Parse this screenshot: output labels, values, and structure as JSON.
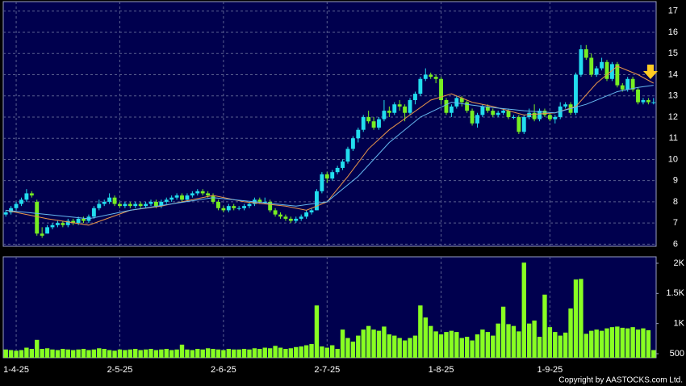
{
  "chart_data": [
    {
      "type": "candlestick",
      "up_color": "#22ddee",
      "down_color": "#77ee22",
      "xlim": [
        -0.5,
        125.5
      ],
      "xticks": [
        {
          "value": 2,
          "label": "1-4-25"
        },
        {
          "value": 22,
          "label": "2-5-25"
        },
        {
          "value": 42,
          "label": "2-6-25"
        },
        {
          "value": 62,
          "label": "2-7-25"
        },
        {
          "value": 84,
          "label": "1-8-25"
        },
        {
          "value": 105,
          "label": "1-9-25"
        }
      ],
      "ylim": [
        5.9,
        17.45
      ],
      "yticks": [
        6,
        7,
        8,
        9,
        10,
        11,
        12,
        13,
        14,
        15,
        16,
        17
      ],
      "grid": true,
      "ohlc": [
        [
          7.4,
          7.6,
          7.3,
          7.5
        ],
        [
          7.5,
          7.8,
          7.4,
          7.7
        ],
        [
          7.7,
          8.0,
          7.6,
          7.9
        ],
        [
          7.9,
          8.2,
          7.8,
          8.1
        ],
        [
          8.1,
          8.6,
          8.0,
          8.4
        ],
        [
          8.4,
          8.5,
          8.2,
          8.3
        ],
        [
          8.0,
          8.1,
          6.4,
          6.5
        ],
        [
          6.5,
          6.8,
          6.3,
          6.4
        ],
        [
          6.5,
          6.9,
          6.5,
          6.8
        ],
        [
          6.8,
          7.0,
          6.7,
          6.9
        ],
        [
          6.9,
          7.1,
          6.8,
          7.0
        ],
        [
          7.0,
          7.1,
          6.8,
          6.9
        ],
        [
          6.9,
          7.2,
          6.8,
          7.1
        ],
        [
          7.1,
          7.2,
          6.9,
          7.0
        ],
        [
          7.0,
          7.3,
          6.9,
          7.2
        ],
        [
          7.2,
          7.3,
          7.0,
          7.1
        ],
        [
          7.1,
          7.4,
          7.0,
          7.3
        ],
        [
          7.3,
          7.8,
          7.2,
          7.7
        ],
        [
          7.7,
          8.1,
          7.6,
          7.9
        ],
        [
          7.9,
          8.1,
          7.8,
          8.0
        ],
        [
          8.0,
          8.4,
          7.9,
          8.2
        ],
        [
          8.2,
          8.3,
          7.8,
          7.9
        ],
        [
          7.9,
          8.0,
          7.7,
          7.8
        ],
        [
          7.8,
          8.0,
          7.7,
          7.9
        ],
        [
          7.9,
          8.0,
          7.7,
          7.8
        ],
        [
          7.8,
          8.0,
          7.7,
          7.9
        ],
        [
          7.9,
          8.0,
          7.7,
          7.8
        ],
        [
          7.8,
          8.0,
          7.7,
          7.9
        ],
        [
          7.9,
          8.1,
          7.8,
          8.0
        ],
        [
          8.0,
          8.1,
          7.7,
          7.8
        ],
        [
          7.8,
          8.1,
          7.7,
          8.0
        ],
        [
          8.0,
          8.2,
          7.9,
          8.1
        ],
        [
          8.1,
          8.3,
          8.0,
          8.2
        ],
        [
          8.2,
          8.4,
          8.1,
          8.3
        ],
        [
          8.3,
          8.4,
          8.0,
          8.1
        ],
        [
          8.1,
          8.4,
          8.0,
          8.3
        ],
        [
          8.3,
          8.5,
          8.2,
          8.4
        ],
        [
          8.4,
          8.6,
          8.3,
          8.5
        ],
        [
          8.5,
          8.6,
          8.3,
          8.4
        ],
        [
          8.4,
          8.5,
          8.2,
          8.3
        ],
        [
          8.3,
          8.4,
          7.9,
          8.0
        ],
        [
          8.0,
          8.1,
          7.6,
          7.7
        ],
        [
          7.7,
          7.8,
          7.5,
          7.6
        ],
        [
          7.6,
          7.9,
          7.5,
          7.8
        ],
        [
          7.8,
          7.9,
          7.6,
          7.7
        ],
        [
          7.7,
          7.8,
          7.6,
          7.7
        ],
        [
          7.7,
          7.9,
          7.6,
          7.8
        ],
        [
          7.8,
          8.0,
          7.7,
          7.9
        ],
        [
          7.9,
          8.2,
          7.8,
          8.1
        ],
        [
          8.1,
          8.2,
          7.9,
          8.0
        ],
        [
          8.0,
          8.2,
          7.9,
          8.0
        ],
        [
          8.0,
          8.1,
          7.5,
          7.6
        ],
        [
          7.6,
          7.7,
          7.3,
          7.4
        ],
        [
          7.4,
          7.5,
          7.2,
          7.3
        ],
        [
          7.3,
          7.4,
          7.1,
          7.2
        ],
        [
          7.2,
          7.3,
          7.0,
          7.1
        ],
        [
          7.1,
          7.3,
          7.0,
          7.2
        ],
        [
          7.2,
          7.4,
          7.1,
          7.3
        ],
        [
          7.3,
          7.6,
          7.2,
          7.5
        ],
        [
          7.5,
          7.7,
          7.4,
          7.6
        ],
        [
          7.6,
          8.6,
          7.6,
          8.5
        ],
        [
          8.5,
          9.4,
          8.4,
          9.3
        ],
        [
          9.3,
          9.4,
          8.9,
          9.1
        ],
        [
          9.1,
          9.5,
          9.0,
          9.4
        ],
        [
          9.4,
          9.7,
          9.3,
          9.6
        ],
        [
          9.6,
          10.0,
          9.5,
          9.9
        ],
        [
          9.9,
          10.6,
          9.8,
          10.5
        ],
        [
          10.5,
          11.1,
          10.4,
          11.0
        ],
        [
          11.0,
          11.5,
          10.8,
          11.4
        ],
        [
          11.4,
          12.1,
          11.3,
          12.0
        ],
        [
          12.0,
          12.3,
          11.7,
          11.8
        ],
        [
          11.8,
          12.0,
          11.4,
          11.5
        ],
        [
          11.5,
          12.0,
          11.4,
          11.9
        ],
        [
          11.9,
          12.8,
          11.8,
          12.3
        ],
        [
          12.3,
          12.5,
          12.0,
          12.2
        ],
        [
          12.2,
          12.7,
          12.1,
          12.6
        ],
        [
          12.6,
          12.8,
          12.3,
          12.5
        ],
        [
          12.5,
          12.6,
          11.8,
          12.2
        ],
        [
          12.2,
          12.9,
          12.1,
          12.8
        ],
        [
          12.8,
          13.2,
          12.6,
          13.1
        ],
        [
          13.1,
          13.9,
          13.0,
          13.8
        ],
        [
          13.8,
          14.3,
          13.7,
          14.0
        ],
        [
          14.0,
          14.1,
          13.8,
          13.9
        ],
        [
          13.9,
          14.0,
          13.6,
          13.8
        ],
        [
          13.8,
          13.9,
          12.6,
          12.8
        ],
        [
          12.8,
          12.9,
          12.1,
          12.2
        ],
        [
          12.2,
          12.6,
          12.0,
          12.5
        ],
        [
          12.5,
          13.0,
          12.4,
          12.9
        ],
        [
          12.9,
          13.0,
          12.5,
          12.7
        ],
        [
          12.7,
          12.8,
          12.2,
          12.3
        ],
        [
          12.3,
          12.4,
          11.6,
          11.7
        ],
        [
          11.7,
          12.2,
          11.5,
          12.1
        ],
        [
          12.1,
          12.6,
          12.0,
          12.5
        ],
        [
          12.5,
          12.6,
          12.2,
          12.3
        ],
        [
          12.3,
          12.4,
          12.0,
          12.1
        ],
        [
          12.1,
          12.3,
          12.0,
          12.2
        ],
        [
          12.2,
          12.4,
          12.1,
          12.3
        ],
        [
          12.3,
          12.4,
          11.9,
          12.0
        ],
        [
          12.0,
          12.1,
          11.9,
          12.0
        ],
        [
          12.0,
          12.1,
          11.2,
          11.3
        ],
        [
          11.3,
          12.1,
          11.2,
          12.0
        ],
        [
          12.0,
          12.4,
          11.9,
          12.2
        ],
        [
          12.2,
          12.6,
          11.8,
          11.9
        ],
        [
          11.9,
          12.4,
          11.8,
          12.3
        ],
        [
          12.3,
          12.4,
          12.0,
          12.1
        ],
        [
          12.1,
          12.2,
          11.8,
          11.9
        ],
        [
          11.9,
          12.1,
          11.7,
          12.0
        ],
        [
          12.0,
          12.7,
          11.9,
          12.5
        ],
        [
          12.5,
          12.7,
          12.4,
          12.6
        ],
        [
          12.6,
          12.7,
          12.1,
          12.2
        ],
        [
          12.2,
          14.1,
          12.1,
          14.0
        ],
        [
          14.0,
          15.4,
          13.9,
          15.2
        ],
        [
          15.2,
          15.4,
          14.7,
          14.8
        ],
        [
          14.8,
          15.0,
          13.9,
          14.0
        ],
        [
          14.0,
          14.4,
          13.9,
          14.3
        ],
        [
          14.3,
          14.8,
          14.2,
          14.6
        ],
        [
          14.6,
          14.7,
          13.7,
          13.8
        ],
        [
          13.8,
          14.6,
          13.7,
          14.5
        ],
        [
          14.5,
          14.6,
          13.4,
          13.5
        ],
        [
          13.5,
          13.6,
          13.2,
          13.3
        ],
        [
          13.3,
          13.9,
          13.2,
          13.8
        ],
        [
          13.8,
          13.9,
          13.2,
          13.3
        ],
        [
          13.3,
          13.4,
          12.6,
          12.7
        ],
        [
          12.7,
          12.9,
          12.6,
          12.8
        ],
        [
          12.8,
          12.9,
          12.6,
          12.7
        ],
        [
          12.7,
          12.9,
          12.6,
          12.7
        ]
      ],
      "lines": [
        {
          "color": "#e8954a",
          "x": [
            0,
            8,
            16,
            24,
            30,
            36,
            40,
            46,
            50,
            54,
            58,
            62,
            66,
            70,
            74,
            78,
            82,
            86,
            90,
            94,
            100,
            106,
            110,
            114,
            118,
            122,
            125
          ],
          "values": [
            7.6,
            7.2,
            6.9,
            7.6,
            7.8,
            8.1,
            8.3,
            8.0,
            7.9,
            7.8,
            7.6,
            8.0,
            9.2,
            10.5,
            11.4,
            12.1,
            12.8,
            13.1,
            12.7,
            12.5,
            12.1,
            12.2,
            12.5,
            13.6,
            14.4,
            14.0,
            13.6
          ]
        },
        {
          "color": "#66b8f0",
          "x": [
            0,
            8,
            16,
            24,
            32,
            40,
            48,
            56,
            62,
            68,
            74,
            80,
            86,
            92,
            100,
            106,
            112,
            118,
            122,
            125
          ],
          "values": [
            7.6,
            7.4,
            7.2,
            7.6,
            7.9,
            8.2,
            8.0,
            7.8,
            8.0,
            9.2,
            10.8,
            12.0,
            12.7,
            12.5,
            12.3,
            12.2,
            12.6,
            13.2,
            13.4,
            13.5
          ]
        }
      ]
    },
    {
      "type": "bar",
      "color": "#88ff22",
      "xlim": [
        -0.5,
        125.5
      ],
      "ylim": [
        433,
        2107
      ],
      "yticks": [
        500,
        {
          "value": 1000,
          "label": "1K"
        },
        {
          "value": 1500,
          "label": "1.5K"
        },
        {
          "value": 2000,
          "label": "2K"
        }
      ],
      "values": [
        570,
        560,
        550,
        560,
        600,
        580,
        730,
        580,
        590,
        570,
        560,
        580,
        570,
        560,
        570,
        580,
        560,
        570,
        590,
        580,
        560,
        550,
        570,
        560,
        570,
        580,
        560,
        570,
        580,
        560,
        570,
        580,
        560,
        570,
        650,
        570,
        560,
        580,
        570,
        590,
        580,
        570,
        560,
        580,
        570,
        570,
        580,
        570,
        590,
        580,
        600,
        590,
        630,
        600,
        580,
        590,
        610,
        620,
        640,
        660,
        1300,
        620,
        600,
        640,
        580,
        900,
        760,
        700,
        800,
        900,
        960,
        900,
        880,
        950,
        820,
        800,
        760,
        720,
        760,
        800,
        1300,
        1100,
        960,
        870,
        820,
        860,
        880,
        860,
        760,
        780,
        720,
        820,
        900,
        860,
        800,
        1000,
        1280,
        990,
        960,
        870,
        2010,
        1000,
        1050,
        780,
        1480,
        940,
        860,
        800,
        850,
        1250,
        1730,
        1740,
        830,
        880,
        900,
        880,
        920,
        940,
        950,
        930,
        920,
        940,
        900,
        920,
        890,
        560
      ]
    }
  ],
  "footer": "Copyright by AASTOCKS.com Ltd."
}
